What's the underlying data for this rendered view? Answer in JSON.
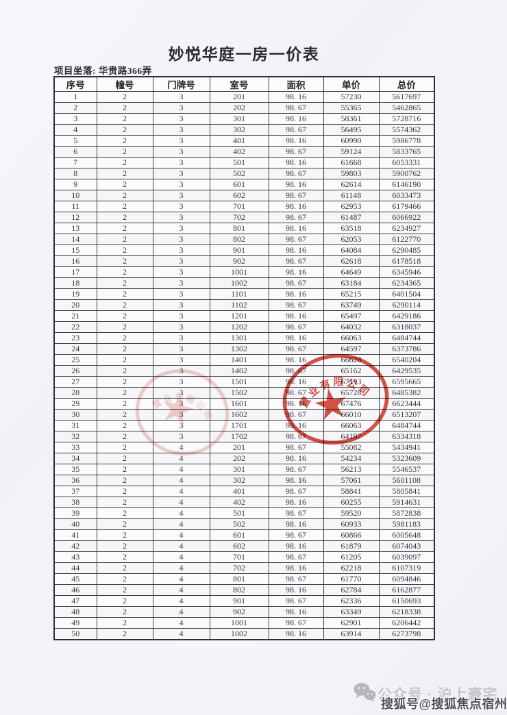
{
  "document": {
    "title": "妙悦华庭一房一价表",
    "location_line": "项目坐落: 华贵路366弄"
  },
  "table": {
    "headers": [
      "序号",
      "幢号",
      "门牌号",
      "室号",
      "面积",
      "单价",
      "总价"
    ],
    "rows": [
      [
        "1",
        "2",
        "3",
        "201",
        "98. 16",
        "57230",
        "5617697"
      ],
      [
        "2",
        "2",
        "3",
        "202",
        "98. 67",
        "55365",
        "5462865"
      ],
      [
        "3",
        "2",
        "3",
        "301",
        "98. 16",
        "58361",
        "5728716"
      ],
      [
        "4",
        "2",
        "3",
        "302",
        "98. 67",
        "56495",
        "5574362"
      ],
      [
        "5",
        "2",
        "3",
        "401",
        "98. 16",
        "60990",
        "5986778"
      ],
      [
        "6",
        "2",
        "3",
        "402",
        "98. 67",
        "59124",
        "5833765"
      ],
      [
        "7",
        "2",
        "3",
        "501",
        "98. 16",
        "61668",
        "6053331"
      ],
      [
        "8",
        "2",
        "3",
        "502",
        "98. 67",
        "59803",
        "5900762"
      ],
      [
        "9",
        "2",
        "3",
        "601",
        "98. 16",
        "62614",
        "6146190"
      ],
      [
        "10",
        "2",
        "3",
        "602",
        "98. 67",
        "61148",
        "6033473"
      ],
      [
        "11",
        "2",
        "3",
        "701",
        "98. 16",
        "62953",
        "6179466"
      ],
      [
        "12",
        "2",
        "3",
        "702",
        "98. 67",
        "61487",
        "6066922"
      ],
      [
        "13",
        "2",
        "3",
        "801",
        "98. 16",
        "63518",
        "6234927"
      ],
      [
        "14",
        "2",
        "3",
        "802",
        "98. 67",
        "62053",
        "6122770"
      ],
      [
        "15",
        "2",
        "3",
        "901",
        "98. 16",
        "64084",
        "6290485"
      ],
      [
        "16",
        "2",
        "3",
        "902",
        "98. 67",
        "62618",
        "6178518"
      ],
      [
        "17",
        "2",
        "3",
        "1001",
        "98. 16",
        "64649",
        "6345946"
      ],
      [
        "18",
        "2",
        "3",
        "1002",
        "98. 67",
        "63184",
        "6234365"
      ],
      [
        "19",
        "2",
        "3",
        "1101",
        "98. 16",
        "65215",
        "6401504"
      ],
      [
        "20",
        "2",
        "3",
        "1102",
        "98. 67",
        "63749",
        "6290114"
      ],
      [
        "21",
        "2",
        "3",
        "1201",
        "98. 16",
        "65497",
        "6429186"
      ],
      [
        "22",
        "2",
        "3",
        "1202",
        "98. 67",
        "64032",
        "6318037"
      ],
      [
        "23",
        "2",
        "3",
        "1301",
        "98. 16",
        "66063",
        "6484744"
      ],
      [
        "24",
        "2",
        "3",
        "1302",
        "98. 67",
        "64597",
        "6373786"
      ],
      [
        "25",
        "2",
        "3",
        "1401",
        "98. 16",
        "66628",
        "6540204"
      ],
      [
        "26",
        "2",
        "3",
        "1402",
        "98. 67",
        "65162",
        "6429535"
      ],
      [
        "27",
        "2",
        "3",
        "1501",
        "98. 16",
        "67193",
        "6595665"
      ],
      [
        "28",
        "2",
        "3",
        "1502",
        "98. 67",
        "65728",
        "6485382"
      ],
      [
        "29",
        "2",
        "3",
        "1601",
        "98. 16",
        "67476",
        "6623444"
      ],
      [
        "30",
        "2",
        "3",
        "1602",
        "98. 67",
        "66010",
        "6513207"
      ],
      [
        "31",
        "2",
        "3",
        "1701",
        "98. 16",
        "66063",
        "6484744"
      ],
      [
        "32",
        "2",
        "3",
        "1702",
        "98. 67",
        "64197",
        "6334318"
      ],
      [
        "33",
        "2",
        "4",
        "201",
        "98. 67",
        "55082",
        "5434941"
      ],
      [
        "34",
        "2",
        "4",
        "202",
        "98. 16",
        "54234",
        "5323609"
      ],
      [
        "35",
        "2",
        "4",
        "301",
        "98. 67",
        "56213",
        "5546537"
      ],
      [
        "36",
        "2",
        "4",
        "302",
        "98. 16",
        "57061",
        "5601108"
      ],
      [
        "37",
        "2",
        "4",
        "401",
        "98. 67",
        "58841",
        "5805841"
      ],
      [
        "38",
        "2",
        "4",
        "402",
        "98. 16",
        "60255",
        "5914631"
      ],
      [
        "39",
        "2",
        "4",
        "501",
        "98. 67",
        "59520",
        "5872838"
      ],
      [
        "40",
        "2",
        "4",
        "502",
        "98. 16",
        "60933",
        "5981183"
      ],
      [
        "41",
        "2",
        "4",
        "601",
        "98. 67",
        "60866",
        "6005648"
      ],
      [
        "42",
        "2",
        "4",
        "602",
        "98. 16",
        "61879",
        "6074043"
      ],
      [
        "43",
        "2",
        "4",
        "701",
        "98. 67",
        "61205",
        "6039097"
      ],
      [
        "44",
        "2",
        "4",
        "702",
        "98. 16",
        "62218",
        "6107319"
      ],
      [
        "45",
        "2",
        "4",
        "801",
        "98. 67",
        "61770",
        "6094846"
      ],
      [
        "46",
        "2",
        "4",
        "802",
        "98. 16",
        "62784",
        "6162877"
      ],
      [
        "47",
        "2",
        "4",
        "901",
        "98. 67",
        "62336",
        "6150693"
      ],
      [
        "48",
        "2",
        "4",
        "902",
        "98. 16",
        "63349",
        "6218338"
      ],
      [
        "49",
        "2",
        "4",
        "1001",
        "98. 67",
        "62901",
        "6206442"
      ],
      [
        "50",
        "2",
        "4",
        "1002",
        "98. 16",
        "63914",
        "6273798"
      ]
    ]
  },
  "stamps": {
    "seal_text": "置业有限公司",
    "seal_color": "#d43a2c"
  },
  "watermark": {
    "wechat_account": "公众号 · 沪上豪宅",
    "sohu_account": "搜狐号@搜狐焦点宿州站"
  },
  "colors": {
    "paper": "#f4f3f8",
    "table_border": "#333338",
    "text": "#38383d",
    "stamp_red": "#d43a2c",
    "watermark_light": "#c5c5cc",
    "watermark_dark": "#4f4f55"
  }
}
